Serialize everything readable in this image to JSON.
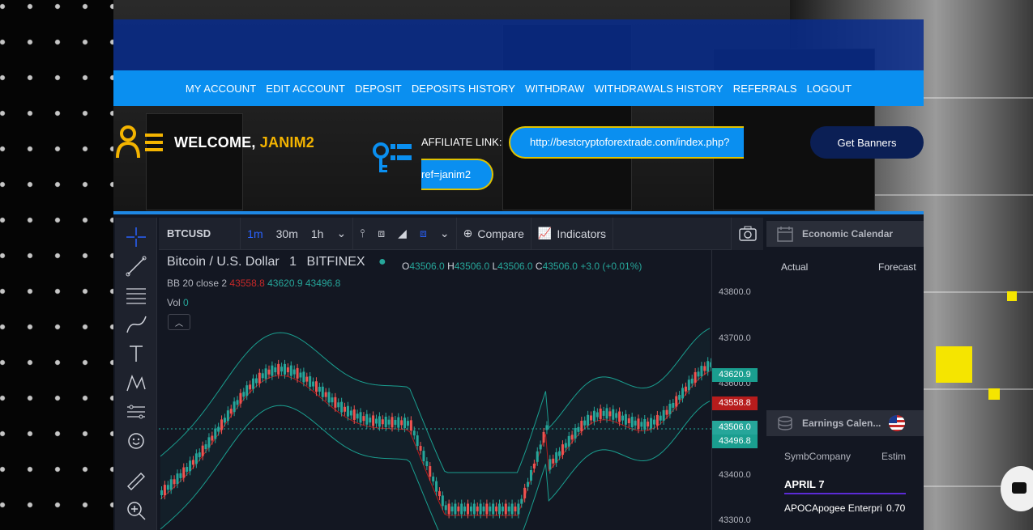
{
  "nav": {
    "items": [
      "MY ACCOUNT",
      "EDIT ACCOUNT",
      "DEPOSIT",
      "DEPOSITS HISTORY",
      "WITHDRAW",
      "WITHDRAWALS HISTORY",
      "REFERRALS",
      "LOGOUT"
    ]
  },
  "welcome": {
    "prefix": "WELCOME,",
    "username": "JANIM2"
  },
  "affiliate": {
    "label": "AFFILIATE LINK:",
    "url_part1": "http://bestcryptoforextrade.com/index.php?",
    "url_part2": "ref=janim2",
    "banners_button": "Get Banners"
  },
  "chart_widget": {
    "symbol": "BTCUSD",
    "intervals": [
      "1m",
      "30m",
      "1h"
    ],
    "active_interval": "1m",
    "compare_label": "Compare",
    "indicators_label": "Indicators",
    "legend": {
      "name": "Bitcoin / U.S. Dollar",
      "interval": "1",
      "exchange": "BITFINEX"
    },
    "ohlc": {
      "o_label": "O",
      "o": "43506.0",
      "h_label": "H",
      "h": "43506.0",
      "l_label": "L",
      "l": "43506.0",
      "c_label": "C",
      "c": "43506.0",
      "change": "+3.0 (+0.01%)"
    },
    "bb": {
      "label": "BB 20 close 2",
      "v1": "43558.8",
      "v2": "43620.9",
      "v3": "43496.8"
    },
    "vol": {
      "label": "Vol",
      "value": "0"
    },
    "price_axis": [
      "43800.0",
      "43700.0",
      "43600.0",
      "43400.0",
      "43300.0"
    ],
    "price_tags": {
      "upper": "43620.9",
      "middle": "43558.8",
      "last": "43506.0",
      "lower": "43496.8"
    },
    "colors": {
      "up": "#26a69a",
      "down": "#ef5350",
      "band": "#1a9e8f",
      "basis": "#b71c1c",
      "accent": "#1e88e5"
    }
  },
  "side_panel": {
    "economic_title": "Economic Calendar",
    "economic_cols": [
      "Actual",
      "Forecast"
    ],
    "earnings_title": "Earnings Calen...",
    "earnings_cols": [
      "SymbCompany",
      "Estim"
    ],
    "date": "APRIL 7",
    "rows": [
      {
        "text": "APOCApogee Enterpri",
        "value": "0.70"
      }
    ]
  }
}
